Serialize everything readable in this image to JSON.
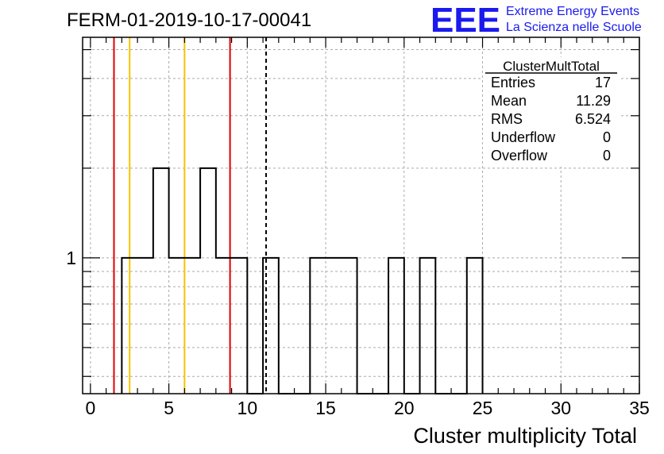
{
  "chart_data": {
    "type": "histogram",
    "title": "FERM-01-2019-10-17-00041",
    "xlabel": "Cluster multiplicity Total",
    "ylabel": "",
    "xlim": [
      -0.5,
      35
    ],
    "log_y": true,
    "ylim": [
      0.35,
      5.5
    ],
    "x_ticks": [
      0,
      5,
      10,
      15,
      20,
      25,
      30,
      35
    ],
    "y_ticks": [
      1
    ],
    "grid": true,
    "bins": [
      {
        "x": 2.5,
        "y": 1
      },
      {
        "x": 3.5,
        "y": 1
      },
      {
        "x": 4.5,
        "y": 2
      },
      {
        "x": 5.5,
        "y": 1
      },
      {
        "x": 6.5,
        "y": 1
      },
      {
        "x": 7.5,
        "y": 2
      },
      {
        "x": 8.5,
        "y": 1
      },
      {
        "x": 9.5,
        "y": 1
      },
      {
        "x": 11.5,
        "y": 1
      },
      {
        "x": 14.5,
        "y": 1
      },
      {
        "x": 15.5,
        "y": 1
      },
      {
        "x": 16.5,
        "y": 1
      },
      {
        "x": 19.5,
        "y": 1
      },
      {
        "x": 21.5,
        "y": 1
      },
      {
        "x": 24.5,
        "y": 1
      }
    ],
    "vertical_lines": [
      {
        "x": 1.5,
        "color": "#e00000",
        "style": "solid"
      },
      {
        "x": 2.5,
        "color": "#f5c400",
        "style": "solid"
      },
      {
        "x": 6.0,
        "color": "#f5c400",
        "style": "solid"
      },
      {
        "x": 8.9,
        "color": "#e00000",
        "style": "solid"
      },
      {
        "x": 11.2,
        "color": "#000000",
        "style": "dashed"
      }
    ],
    "stats_box": {
      "title": "ClusterMultTotal",
      "rows": [
        {
          "label": "Entries",
          "value": "17"
        },
        {
          "label": "Mean",
          "value": "11.29"
        },
        {
          "label": "RMS",
          "value": "6.524"
        },
        {
          "label": "Underflow",
          "value": "0"
        },
        {
          "label": "Overflow",
          "value": "0"
        }
      ]
    }
  },
  "logo": {
    "text": "EEE",
    "line1": "Extreme Energy Events",
    "line2": "La Scienza nelle Scuole",
    "color": "#1a1aee"
  }
}
